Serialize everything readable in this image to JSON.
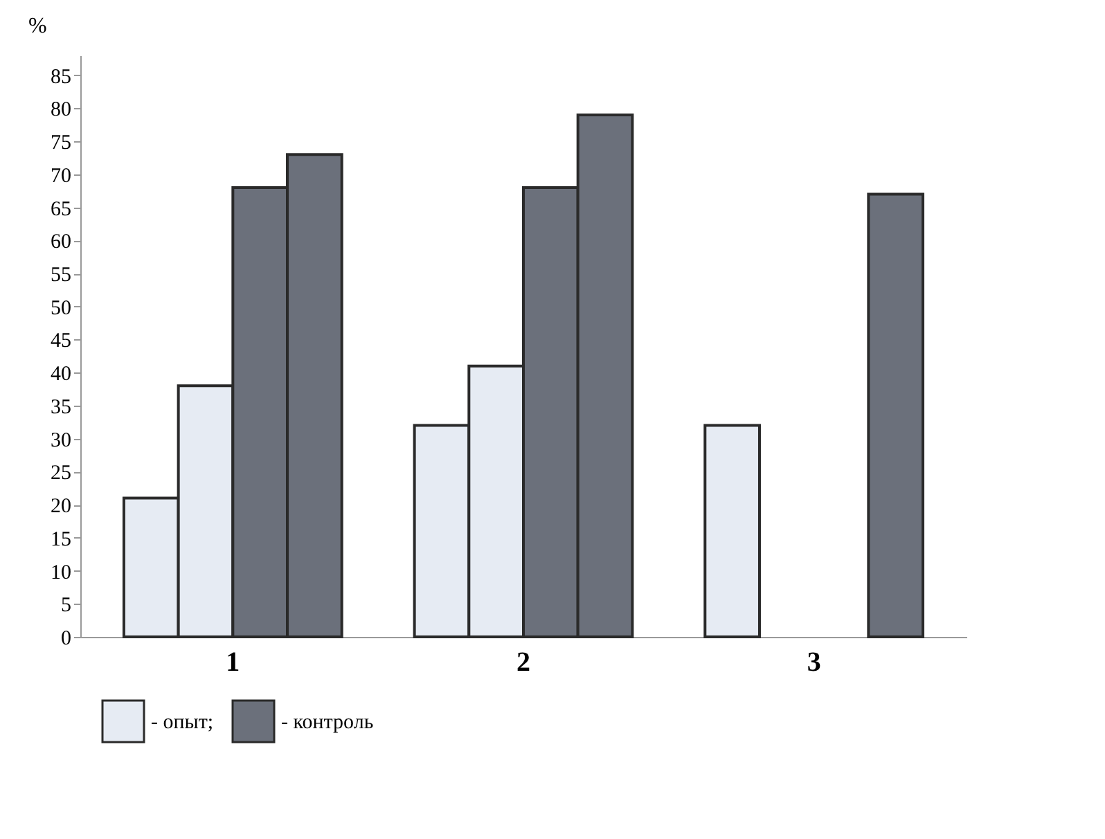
{
  "chart_data": {
    "type": "bar",
    "ylabel": "%",
    "categories": [
      "1",
      "2",
      "3"
    ],
    "series": [
      {
        "name": "- опыт;",
        "color": "#e6ebf3",
        "values": [
          21,
          32,
          32
        ]
      },
      {
        "color": "#e6ebf3",
        "values": [
          38,
          41,
          null
        ]
      },
      {
        "name": "- контроль",
        "color": "#6b707b",
        "values": [
          68,
          68,
          null
        ]
      },
      {
        "color": "#6b707b",
        "values": [
          73,
          79,
          67
        ]
      }
    ],
    "ylim": [
      0,
      88
    ],
    "yticks": [
      0,
      5,
      10,
      15,
      20,
      25,
      30,
      35,
      40,
      45,
      50,
      55,
      60,
      65,
      70,
      75,
      80,
      85
    ],
    "grid": false,
    "legend": "bottom left"
  }
}
